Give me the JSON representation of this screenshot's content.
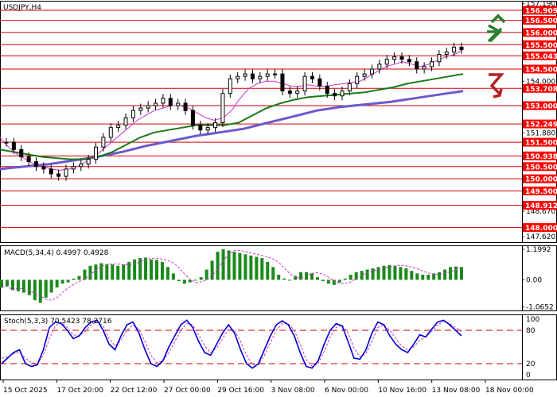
{
  "chart_data": [
    {
      "type": "candlestick",
      "title": "USDJPY,H4",
      "y_ticks": [
        "157.190",
        "156.909",
        "156.500",
        "156.000",
        "155.500",
        "155.043",
        "154.500",
        "154.000",
        "153.708",
        "153.000",
        "152.249",
        "151.880",
        "151.500",
        "150.938",
        "150.500",
        "150.000",
        "149.500",
        "148.912",
        "148.670",
        "148.000",
        "147.620"
      ],
      "ylim": [
        147.4,
        157.3
      ],
      "support_resistance_levels": [
        156.909,
        156.5,
        156.0,
        155.5,
        155.043,
        154.5,
        153.708,
        153.0,
        152.249,
        151.5,
        150.938,
        150.5,
        150.0,
        149.5,
        148.912,
        148.0
      ],
      "level_labels": [
        "156.909",
        "156.500",
        "156.000",
        "155.500",
        "155.043",
        "154.500",
        "153.708",
        "153.000",
        "152.249",
        "151.500",
        "150.938",
        "150.500",
        "150.000",
        "149.500",
        "148.912",
        "148.000"
      ],
      "close_series": [
        151.5,
        151.2,
        150.9,
        150.7,
        150.5,
        150.4,
        150.2,
        150.1,
        150.4,
        150.5,
        150.6,
        150.8,
        151.3,
        151.7,
        152.1,
        152.2,
        152.5,
        152.8,
        152.9,
        153.0,
        153.1,
        153.3,
        153.0,
        153.1,
        152.8,
        152.2,
        152.0,
        152.1,
        152.3,
        153.5,
        154.1,
        154.2,
        154.3,
        154.1,
        154.2,
        154.3,
        154.3,
        153.6,
        153.5,
        153.6,
        154.2,
        154.1,
        153.8,
        153.5,
        153.4,
        153.6,
        153.9,
        154.2,
        154.3,
        154.5,
        154.7,
        154.9,
        155.0,
        154.9,
        154.8,
        154.5,
        154.6,
        154.8,
        155.1,
        155.2,
        155.4,
        155.3
      ],
      "series": [
        {
          "name": "MA fast",
          "color": "#cc33cc",
          "values": [
            151.7,
            151.3,
            151.0,
            150.8,
            150.6,
            150.5,
            150.4,
            150.35,
            150.4,
            150.5,
            150.7,
            150.9,
            151.2,
            151.5,
            151.8,
            152.1,
            152.4,
            152.6,
            152.8,
            152.9,
            153.0,
            153.0,
            152.9,
            152.7,
            152.5,
            152.4,
            152.5,
            152.8,
            153.3,
            153.7,
            153.9,
            154.0,
            154.0,
            153.9,
            153.8,
            153.8,
            153.85,
            153.8,
            153.8,
            153.85,
            153.9,
            153.95,
            154.0,
            154.2,
            154.4,
            154.6,
            154.7,
            154.8,
            154.7,
            154.6,
            154.7,
            154.85,
            155.0,
            155.1,
            155.3
          ]
        },
        {
          "name": "MA medium",
          "color": "#1a7a1a",
          "values": [
            151.2,
            151.1,
            151.0,
            150.9,
            150.85,
            150.8,
            150.8,
            150.9,
            151.1,
            151.4,
            151.7,
            151.9,
            152.0,
            152.1,
            152.2,
            152.2,
            152.2,
            152.3,
            152.6,
            152.9,
            153.1,
            153.25,
            153.35,
            153.4,
            153.45,
            153.5,
            153.55,
            153.65,
            153.75,
            153.9,
            154.0,
            154.1,
            154.2,
            154.3
          ]
        },
        {
          "name": "MA slow",
          "color": "#6a5acd",
          "values": [
            150.4,
            150.5,
            150.6,
            150.75,
            150.9,
            151.1,
            151.35,
            151.55,
            151.75,
            151.9,
            152.05,
            152.3,
            152.55,
            152.8,
            152.95,
            153.05,
            153.15,
            153.3,
            153.45,
            153.6
          ]
        }
      ],
      "x_ticks": [
        "15 Oct 2025",
        "17 Oct 20:00",
        "22 Oct 12:00",
        "27 Oct 00:00",
        "29 Oct 16:00",
        "3 Nov 08:00",
        "6 Nov 00:00",
        "10 Nov 16:00",
        "13 Nov 08:00",
        "18 Nov 00:00"
      ],
      "signals": {
        "up_arrow_color": "#2e7d32",
        "down_arrow_color": "#b22222"
      }
    },
    {
      "type": "bar",
      "title": "MACD(5,34,4) 0.4997 0.4928",
      "y_ticks": [
        "1.1992",
        "0.00",
        "-1.0652"
      ],
      "ylim": [
        -1.2,
        1.35
      ],
      "bar_color": "#1a8a1a",
      "signal_color": "#cc33cc",
      "values": [
        -0.3,
        -0.25,
        -0.4,
        -0.45,
        -0.5,
        -0.6,
        -0.8,
        -0.9,
        -0.7,
        -0.5,
        -0.3,
        -0.15,
        -0.1,
        0.05,
        0.15,
        0.4,
        0.55,
        0.6,
        0.65,
        0.62,
        0.6,
        0.55,
        0.6,
        0.7,
        0.8,
        0.85,
        0.87,
        0.8,
        0.78,
        0.7,
        0.5,
        0.25,
        -0.05,
        -0.15,
        -0.1,
        0.0,
        0.1,
        0.4,
        0.75,
        1.1,
        1.2,
        1.15,
        1.1,
        1.05,
        1.0,
        0.95,
        0.9,
        0.85,
        0.7,
        0.5,
        0.2,
        0.05,
        0.0,
        0.15,
        0.3,
        0.3,
        0.25,
        0.1,
        -0.05,
        -0.15,
        -0.2,
        -0.1,
        0.05,
        0.2,
        0.3,
        0.35,
        0.4,
        0.45,
        0.5,
        0.55,
        0.58,
        0.55,
        0.5,
        0.45,
        0.35,
        0.25,
        0.2,
        0.2,
        0.25,
        0.3,
        0.4,
        0.5,
        0.52,
        0.5
      ]
    },
    {
      "type": "line",
      "title": "Stoch(5,3,3) 70.5423 78.2716",
      "y_ticks": [
        "100",
        "80",
        "20",
        "0"
      ],
      "ylim": [
        0,
        100
      ],
      "reference_levels": [
        80,
        20
      ],
      "series": [
        {
          "name": "main",
          "color": "#0000cc",
          "values": [
            20,
            30,
            40,
            45,
            20,
            15,
            18,
            45,
            85,
            95,
            92,
            80,
            65,
            70,
            85,
            95,
            98,
            80,
            55,
            45,
            70,
            90,
            95,
            75,
            45,
            20,
            15,
            25,
            50,
            70,
            90,
            98,
            85,
            60,
            40,
            35,
            55,
            75,
            90,
            75,
            45,
            20,
            12,
            20,
            45,
            70,
            90,
            97,
            90,
            70,
            40,
            15,
            12,
            25,
            55,
            80,
            92,
            88,
            60,
            30,
            28,
            45,
            75,
            95,
            90,
            70,
            55,
            45,
            40,
            55,
            72,
            68,
            82,
            95,
            98,
            90,
            80,
            70
          ]
        },
        {
          "name": "signal",
          "color": "#cc33cc",
          "values": [
            30,
            32,
            38,
            40,
            30,
            22,
            20,
            35,
            65,
            88,
            94,
            85,
            72,
            70,
            78,
            90,
            95,
            88,
            65,
            52,
            62,
            80,
            90,
            82,
            60,
            35,
            22,
            25,
            40,
            60,
            80,
            92,
            90,
            72,
            52,
            40,
            48,
            65,
            82,
            80,
            60,
            35,
            18,
            18,
            35,
            58,
            80,
            92,
            92,
            80,
            55,
            28,
            15,
            20,
            42,
            68,
            85,
            90,
            75,
            48,
            32,
            38,
            60,
            85,
            90,
            80,
            65,
            52,
            45,
            50,
            62,
            68,
            78,
            90,
            96,
            92,
            85,
            78
          ]
        }
      ]
    }
  ]
}
